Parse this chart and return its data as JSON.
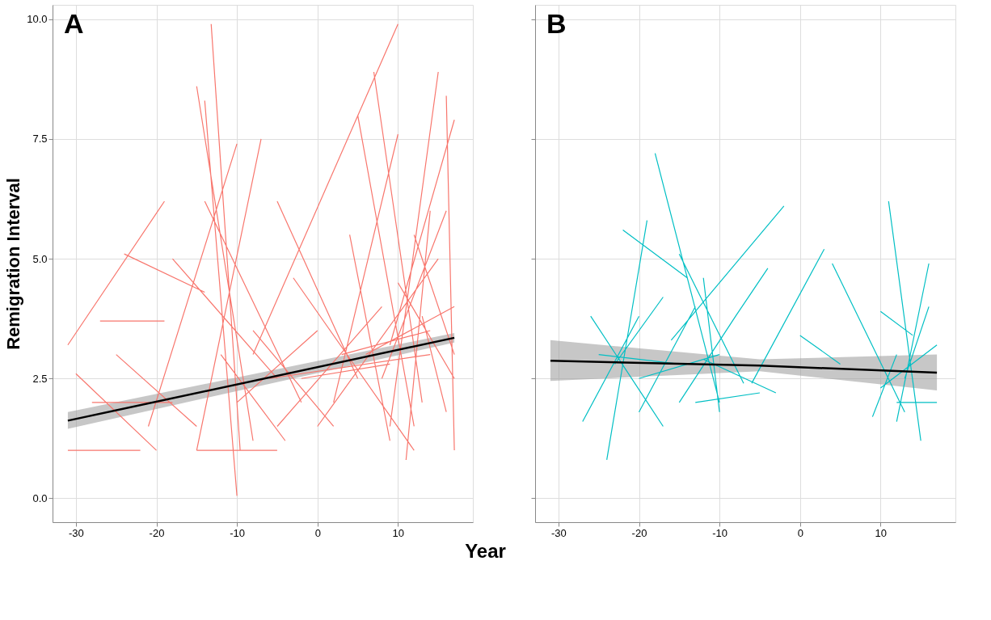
{
  "chart_data": [
    {
      "type": "line",
      "title": "A",
      "xlabel": "Year",
      "ylabel": "Remigration Interval",
      "xlim": [
        -32.9,
        19.3
      ],
      "xticks": [
        -30,
        -20,
        -10,
        0,
        10
      ],
      "ylim": [
        -0.5,
        10.3
      ],
      "yticks": [
        {
          "value": 0,
          "label": "0.0"
        },
        {
          "value": 2.5,
          "label": "2.5"
        },
        {
          "value": 5,
          "label": "5.0"
        },
        {
          "value": 7.5,
          "label": "7.5"
        },
        {
          "value": 10,
          "label": "10.0"
        }
      ],
      "grid": true,
      "series": [
        {
          "color": "#f8766d",
          "x": [
            -13.2,
            -9.6,
            null,
            -15,
            -8,
            null,
            -14,
            -10,
            null,
            -31,
            -19,
            null,
            -24,
            -14,
            null,
            -30,
            -20,
            null,
            -31,
            -22,
            null,
            -15,
            -5,
            null,
            -27,
            -19,
            null,
            -18,
            -5,
            null,
            -14,
            -2,
            null,
            -21,
            -10,
            null,
            -15,
            -7,
            null,
            -8,
            10,
            null,
            7,
            13,
            null,
            5,
            12,
            null,
            15,
            9,
            null,
            16,
            17,
            null,
            2,
            10,
            null,
            -5,
            5,
            null,
            -3,
            12,
            null,
            0,
            15,
            null,
            8,
            16,
            null,
            10,
            17,
            null,
            -10,
            0,
            null,
            -5,
            8,
            null,
            3,
            14,
            null,
            11,
            14,
            null,
            -25,
            -15,
            null,
            -28,
            -18,
            null,
            -8,
            2,
            null,
            12,
            17,
            null,
            4,
            9,
            null,
            6,
            17,
            null,
            -2,
            9,
            null,
            13,
            16,
            null,
            9,
            17,
            null,
            -12,
            -4,
            null,
            -6,
            14
          ],
          "values": [
            9.9,
            1.0,
            null,
            8.6,
            1.2,
            null,
            8.3,
            0.05,
            null,
            3.2,
            6.2,
            null,
            5.1,
            4.3,
            null,
            2.6,
            1.0,
            null,
            1.0,
            1.0,
            null,
            1.0,
            1.0,
            null,
            3.7,
            3.7,
            null,
            5.0,
            2.5,
            null,
            6.2,
            2.0,
            null,
            1.5,
            7.4,
            null,
            1.0,
            7.5,
            null,
            3.0,
            9.9,
            null,
            8.9,
            2.0,
            null,
            8.0,
            1.5,
            null,
            8.9,
            1.5,
            null,
            8.4,
            1.0,
            null,
            2.0,
            7.6,
            null,
            6.2,
            2.5,
            null,
            4.6,
            1.0,
            null,
            1.5,
            5.0,
            null,
            2.5,
            6.0,
            null,
            4.5,
            2.5,
            null,
            2.0,
            3.5,
            null,
            1.5,
            4.0,
            null,
            3.0,
            3.5,
            null,
            0.8,
            6.0,
            null,
            3.0,
            1.5,
            null,
            2.0,
            2.0,
            null,
            3.5,
            1.5,
            null,
            5.5,
            3.0,
            null,
            5.5,
            1.2,
            null,
            3.0,
            4.0,
            null,
            2.5,
            2.8,
            null,
            3.8,
            1.8,
            null,
            3.2,
            7.9,
            null,
            3.0,
            1.2,
            null,
            2.5,
            3.0
          ]
        },
        {
          "color": "#000000",
          "x": [
            -31,
            17
          ],
          "values": [
            1.62,
            3.35
          ],
          "lower": [
            1.45,
            3.25
          ],
          "upper": [
            1.8,
            3.45
          ]
        }
      ]
    },
    {
      "type": "line",
      "title": "B",
      "xlim": [
        -32.9,
        19.3
      ],
      "xticks": [
        -30,
        -20,
        -10,
        0,
        10
      ],
      "ylim": [
        -0.5,
        10.3
      ],
      "grid": true,
      "tick_labels": "x",
      "yticks": [
        {
          "value": 0,
          "label": null
        },
        {
          "value": 2.5,
          "label": null
        },
        {
          "value": 5,
          "label": null
        },
        {
          "value": 7.5,
          "label": null
        },
        {
          "value": 10,
          "label": null
        }
      ],
      "series": [
        {
          "color": "#00bfc4",
          "x": [
            -18,
            -10,
            null,
            -22,
            -14,
            null,
            -2,
            -16,
            null,
            -24,
            -19,
            null,
            -27,
            -20,
            null,
            -26,
            -17,
            null,
            -15,
            -7,
            null,
            -12,
            -10,
            null,
            -8,
            -4,
            null,
            -13,
            -5,
            null,
            3,
            -6,
            null,
            4,
            13,
            null,
            0,
            5,
            null,
            11,
            15,
            null,
            10,
            14,
            null,
            16,
            12,
            null,
            12,
            17,
            null,
            10,
            17,
            null,
            -20,
            -10,
            null,
            -25,
            -15,
            null,
            -12,
            -3,
            null,
            -23,
            -17,
            null,
            -15,
            -8,
            null,
            -20,
            -13,
            null,
            9,
            12,
            null,
            13,
            16
          ],
          "values": [
            7.2,
            2.0,
            null,
            5.6,
            4.6,
            null,
            6.1,
            3.3,
            null,
            0.8,
            5.8,
            null,
            1.6,
            3.8,
            null,
            3.8,
            1.5,
            null,
            5.1,
            2.4,
            null,
            4.6,
            1.8,
            null,
            3.8,
            4.8,
            null,
            2.0,
            2.2,
            null,
            5.2,
            2.4,
            null,
            4.9,
            1.8,
            null,
            3.4,
            2.8,
            null,
            6.2,
            1.2,
            null,
            3.9,
            3.4,
            null,
            4.9,
            1.6,
            null,
            2.0,
            2.0,
            null,
            2.3,
            3.2,
            null,
            2.5,
            3.0,
            null,
            3.0,
            2.8,
            null,
            2.9,
            2.2,
            null,
            2.8,
            4.2,
            null,
            2.0,
            3.8,
            null,
            1.8,
            4.0,
            null,
            1.7,
            3.0,
            null,
            2.5,
            4.0
          ]
        },
        {
          "color": "#000000",
          "x": [
            -31,
            -5,
            17
          ],
          "values": [
            2.87,
            2.77,
            2.62
          ],
          "lower": [
            2.45,
            2.65,
            2.25
          ],
          "upper": [
            3.3,
            2.9,
            3.0
          ]
        }
      ]
    }
  ]
}
